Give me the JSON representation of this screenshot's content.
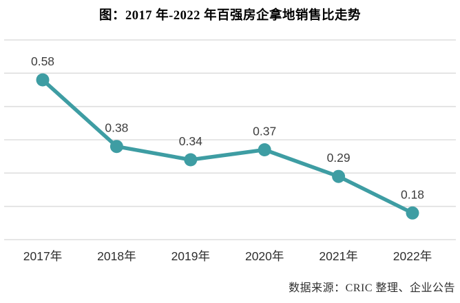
{
  "title": "图：2017 年-2022 年百强房企拿地销售比走势",
  "source": "数据来源：CRIC 整理、企业公告",
  "colors": {
    "line": "#3E9DA3",
    "marker": "#3E9DA3",
    "gridline": "#DEDEDE",
    "data_label": "#3D3D3D",
    "axis_label": "#2E2E2E",
    "title": "#000000",
    "source": "#2F2F2F",
    "background": "#FFFFFF"
  },
  "chart_data": {
    "type": "line",
    "title": "图：2017 年-2022 年百强房企拿地销售比走势",
    "categories": [
      "2017年",
      "2018年",
      "2019年",
      "2020年",
      "2021年",
      "2022年"
    ],
    "series": [
      {
        "name": "百强房企拿地销售比",
        "values": [
          0.58,
          0.38,
          0.34,
          0.37,
          0.29,
          0.18
        ]
      }
    ],
    "data_labels": [
      "0.58",
      "0.38",
      "0.34",
      "0.37",
      "0.29",
      "0.18"
    ],
    "xlabel": "",
    "ylabel": "",
    "ylim": [
      0.1,
      0.7
    ],
    "gridline_step": 0.1,
    "grid": true,
    "y_axis_labels_visible": false,
    "legend_position": "none",
    "marker": "circle",
    "annotation_source": "数据来源：CRIC 整理、企业公告"
  }
}
